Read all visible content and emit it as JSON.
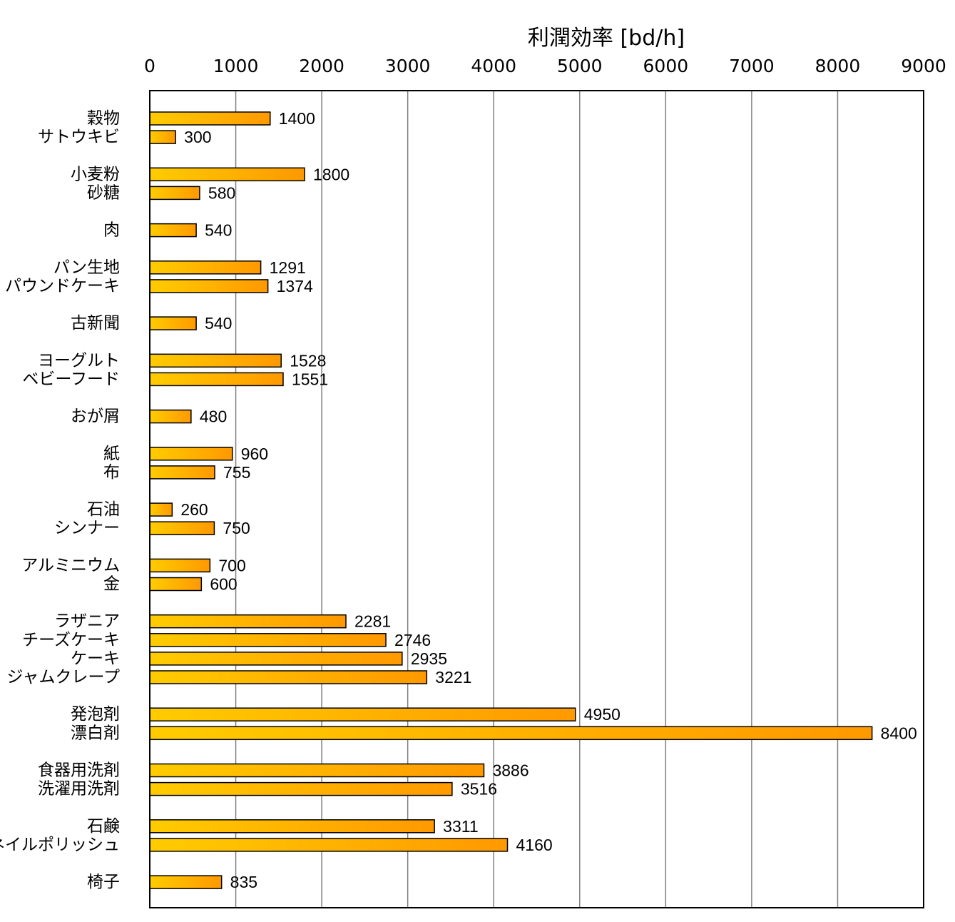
{
  "chart_data": {
    "type": "bar",
    "orientation": "horizontal",
    "title": "",
    "xlabel": "利潤効率 [bd/h]",
    "ylabel": "",
    "xlim": [
      0,
      9000
    ],
    "xticks": [
      0,
      1000,
      2000,
      3000,
      4000,
      5000,
      6000,
      7000,
      8000,
      9000
    ],
    "x_axis_position": "top",
    "grid": true,
    "legend": "none",
    "colors": {
      "bar_start": "#ffcc00",
      "bar_end": "#ff9900",
      "grid": "#808080"
    },
    "groups": [
      {
        "items": [
          {
            "label": "穀物",
            "value": 1400
          },
          {
            "label": "サトウキビ",
            "value": 300
          }
        ]
      },
      {
        "items": [
          {
            "label": "小麦粉",
            "value": 1800
          },
          {
            "label": "砂糖",
            "value": 580
          }
        ]
      },
      {
        "items": [
          {
            "label": "肉",
            "value": 540
          }
        ]
      },
      {
        "items": [
          {
            "label": "パン生地",
            "value": 1291
          },
          {
            "label": "パウンドケーキ",
            "value": 1374
          }
        ]
      },
      {
        "items": [
          {
            "label": "古新聞",
            "value": 540
          }
        ]
      },
      {
        "items": [
          {
            "label": "ヨーグルト",
            "value": 1528
          },
          {
            "label": "ベビーフード",
            "value": 1551
          }
        ]
      },
      {
        "items": [
          {
            "label": "おが屑",
            "value": 480
          }
        ]
      },
      {
        "items": [
          {
            "label": "紙",
            "value": 960
          },
          {
            "label": "布",
            "value": 755
          }
        ]
      },
      {
        "items": [
          {
            "label": "石油",
            "value": 260
          },
          {
            "label": "シンナー",
            "value": 750
          }
        ]
      },
      {
        "items": [
          {
            "label": "アルミニウム",
            "value": 700
          },
          {
            "label": "金",
            "value": 600
          }
        ]
      },
      {
        "items": [
          {
            "label": "ラザニア",
            "value": 2281
          },
          {
            "label": "チーズケーキ",
            "value": 2746
          },
          {
            "label": "ケーキ",
            "value": 2935
          },
          {
            "label": "ジャムクレープ",
            "value": 3221
          }
        ]
      },
      {
        "items": [
          {
            "label": "発泡剤",
            "value": 4950
          },
          {
            "label": "漂白剤",
            "value": 8400
          }
        ]
      },
      {
        "items": [
          {
            "label": "食器用洗剤",
            "value": 3886
          },
          {
            "label": "洗濯用洗剤",
            "value": 3516
          }
        ]
      },
      {
        "items": [
          {
            "label": "石鹸",
            "value": 3311
          },
          {
            "label": "ネイルポリッシュ",
            "value": 4160
          }
        ]
      },
      {
        "items": [
          {
            "label": "椅子",
            "value": 835
          }
        ]
      }
    ]
  }
}
